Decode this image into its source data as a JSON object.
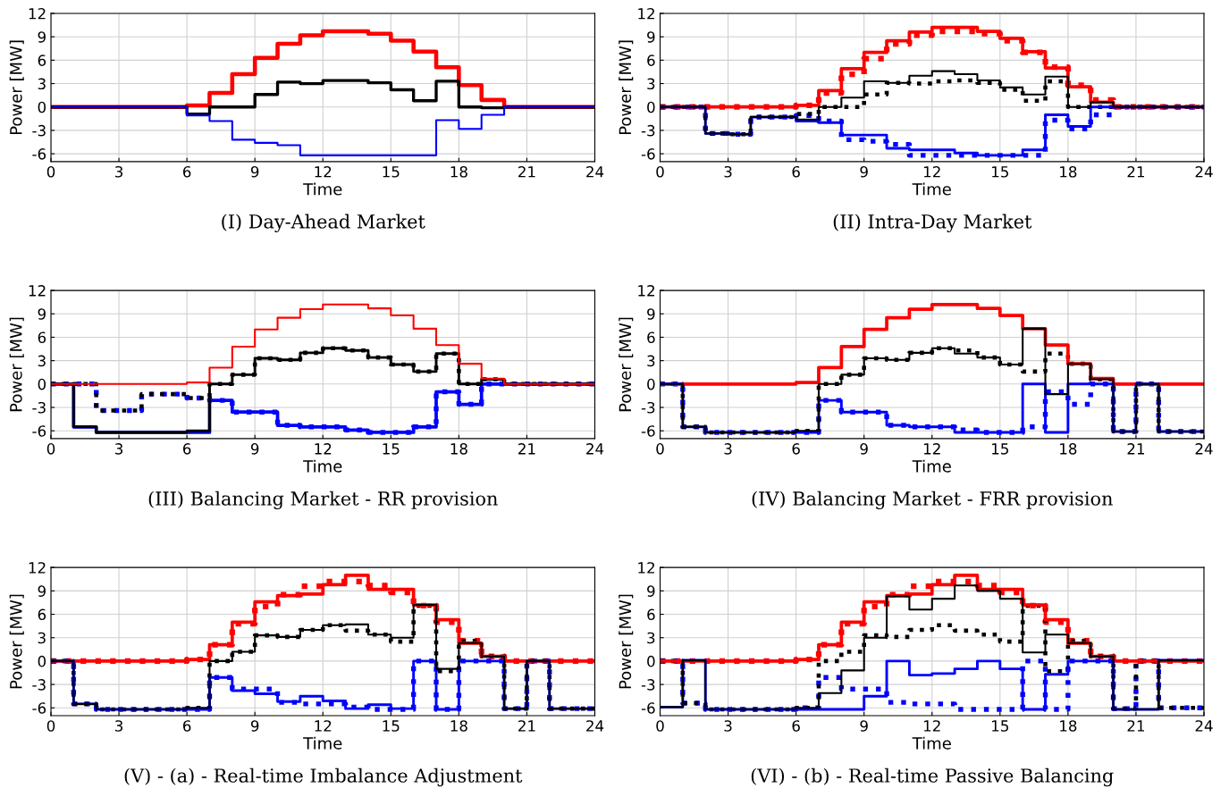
{
  "chart_data": [
    {
      "type": "step",
      "title": "(I) Day-Ahead Market",
      "xlabel": "Time",
      "ylabel": "Power [MW]",
      "x": [
        0,
        1,
        2,
        3,
        4,
        5,
        6,
        7,
        8,
        9,
        10,
        11,
        12,
        13,
        14,
        15,
        16,
        17,
        18,
        19,
        20,
        21,
        22,
        23,
        24
      ],
      "xlim": [
        0,
        24
      ],
      "ylim": [
        -7,
        12
      ],
      "xticks": [
        0,
        3,
        6,
        9,
        12,
        15,
        18,
        21,
        24
      ],
      "yticks": [
        -6,
        -3,
        0,
        3,
        6,
        9,
        12
      ],
      "grid": true,
      "series": [
        {
          "color": "#ff0000",
          "line_style": "solid",
          "values": [
            0,
            0,
            0,
            0,
            0,
            0,
            0.2,
            1.8,
            4.2,
            6.3,
            8.1,
            9.2,
            9.7,
            9.7,
            9.4,
            8.5,
            7.1,
            5.1,
            2.8,
            0.9,
            0,
            0,
            0,
            0,
            0
          ]
        },
        {
          "color": "#000000",
          "line_style": "solid",
          "values": [
            0,
            0,
            0,
            0,
            0,
            0,
            -0.9,
            0,
            0,
            1.6,
            3.2,
            3.0,
            3.4,
            3.4,
            3.1,
            2.2,
            0.8,
            3.3,
            0,
            -0.1,
            0,
            0,
            0,
            0,
            0
          ]
        },
        {
          "color": "#0000ff",
          "line_style": "solid",
          "values": [
            0,
            0,
            0,
            0,
            0,
            0,
            -1.1,
            -1.8,
            -4.2,
            -4.6,
            -4.9,
            -6.2,
            -6.2,
            -6.2,
            -6.2,
            -6.2,
            -6.2,
            -1.7,
            -2.8,
            -1.0,
            0,
            0,
            0,
            0,
            0
          ]
        }
      ]
    },
    {
      "type": "step",
      "title": "(II) Intra-Day Market",
      "xlabel": "Time",
      "ylabel": "Power [MW]",
      "x": [
        0,
        1,
        2,
        3,
        4,
        5,
        6,
        7,
        8,
        9,
        10,
        11,
        12,
        13,
        14,
        15,
        16,
        17,
        18,
        19,
        20,
        21,
        22,
        23,
        24
      ],
      "xlim": [
        0,
        24
      ],
      "ylim": [
        -7,
        12
      ],
      "xticks": [
        0,
        3,
        6,
        9,
        12,
        15,
        18,
        21,
        24
      ],
      "yticks": [
        -6,
        -3,
        0,
        3,
        6,
        9,
        12
      ],
      "grid": true,
      "series": [
        {
          "color": "#ff0000",
          "line_style": "dotted",
          "values": [
            0,
            0,
            0,
            0,
            0,
            0,
            0.2,
            1.8,
            4.2,
            6.2,
            8.1,
            9.2,
            9.7,
            9.7,
            9.4,
            8.5,
            7.0,
            5.1,
            2.8,
            0.9,
            0,
            0,
            0,
            0,
            0
          ]
        },
        {
          "color": "#0000ff",
          "line_style": "dotted",
          "values": [
            0,
            0,
            -3.4,
            -3.5,
            -1.3,
            -1.3,
            -1.1,
            -1.8,
            -4.2,
            -4.4,
            -4.8,
            -6.2,
            -6.2,
            -6.2,
            -6.2,
            -6.2,
            -6.2,
            -1.7,
            -2.8,
            -1.0,
            0,
            0,
            0,
            0,
            0
          ]
        },
        {
          "color": "#000000",
          "line_style": "dotted",
          "values": [
            0,
            0,
            -3.4,
            -3.5,
            -1.3,
            -1.3,
            -0.9,
            0,
            0,
            1.6,
            3.1,
            3.0,
            3.3,
            3.4,
            3.1,
            2.2,
            0.8,
            3.3,
            0,
            0,
            0,
            0,
            0,
            0,
            0
          ]
        },
        {
          "color": "#ff0000",
          "line_style": "solid",
          "values": [
            0,
            0,
            0,
            0,
            0,
            0,
            0.2,
            2.1,
            4.9,
            7.0,
            8.5,
            9.6,
            10.2,
            10.2,
            9.7,
            8.8,
            7.1,
            5.0,
            2.6,
            0.6,
            0,
            0,
            0,
            0,
            0
          ]
        },
        {
          "color": "#0000ff",
          "line_style": "solid",
          "values": [
            0,
            0,
            -3.4,
            -3.5,
            -1.3,
            -1.3,
            -1.8,
            -2.0,
            -3.6,
            -3.6,
            -5.3,
            -5.5,
            -5.5,
            -5.9,
            -6.2,
            -6.2,
            -5.5,
            -1.0,
            -2.5,
            0,
            0,
            0,
            0,
            0,
            0
          ]
        },
        {
          "color": "#000000",
          "line_style": "solid",
          "values": [
            0,
            0,
            -3.4,
            -3.5,
            -1.3,
            -1.3,
            -1.6,
            0,
            1.2,
            3.3,
            3.1,
            4.0,
            4.6,
            4.2,
            3.4,
            2.5,
            1.6,
            3.9,
            0,
            0.6,
            0,
            0,
            0,
            0,
            0
          ]
        }
      ]
    },
    {
      "type": "step",
      "title": "(III) Balancing Market - RR provision",
      "xlabel": "Time",
      "ylabel": "Power [MW]",
      "x": [
        0,
        1,
        2,
        3,
        4,
        5,
        6,
        7,
        8,
        9,
        10,
        11,
        12,
        13,
        14,
        15,
        16,
        17,
        18,
        19,
        20,
        21,
        22,
        23,
        24
      ],
      "xlim": [
        0,
        24
      ],
      "ylim": [
        -7,
        12
      ],
      "xticks": [
        0,
        3,
        6,
        9,
        12,
        15,
        18,
        21,
        24
      ],
      "yticks": [
        -6,
        -3,
        0,
        3,
        6,
        9,
        12
      ],
      "grid": true,
      "series": [
        {
          "color": "#0000ff",
          "line_style": "dotted",
          "values": [
            0,
            0,
            -3.4,
            -3.4,
            -1.3,
            -1.3,
            -1.8,
            -2.1,
            -3.6,
            -3.6,
            -5.3,
            -5.5,
            -5.5,
            -5.9,
            -6.2,
            -6.2,
            -5.5,
            -1.0,
            -2.6,
            0,
            0,
            0,
            0,
            0,
            0
          ]
        },
        {
          "color": "#000000",
          "line_style": "dotted",
          "values": [
            0,
            0,
            -3.4,
            -3.4,
            -1.3,
            -1.3,
            -1.8,
            0,
            1.2,
            3.3,
            3.1,
            4.0,
            4.6,
            4.3,
            3.4,
            2.5,
            1.6,
            3.9,
            0,
            0.6,
            0,
            0,
            0,
            0,
            0
          ]
        },
        {
          "color": "#0000ff",
          "line_style": "solid",
          "values": [
            0,
            -5.5,
            -6.2,
            -6.2,
            -6.2,
            -6.2,
            -6.2,
            -2.1,
            -3.6,
            -3.6,
            -5.3,
            -5.5,
            -5.5,
            -5.9,
            -6.2,
            -6.2,
            -5.5,
            -1.0,
            -2.6,
            0,
            0,
            0,
            0,
            0,
            0
          ]
        },
        {
          "color": "#000000",
          "line_style": "solid",
          "values": [
            0,
            -5.5,
            -6.2,
            -6.2,
            -6.2,
            -6.2,
            -6.0,
            0,
            1.2,
            3.3,
            3.1,
            4.0,
            4.6,
            4.3,
            3.4,
            2.5,
            1.6,
            3.9,
            0,
            0.6,
            0,
            0,
            0,
            0,
            0
          ]
        },
        {
          "color": "#ff0000",
          "line_style": "solid",
          "values": [
            0,
            0,
            0,
            0,
            0,
            0,
            0.2,
            2.1,
            4.8,
            7.0,
            8.5,
            9.6,
            10.2,
            10.2,
            9.7,
            8.8,
            7.1,
            5.0,
            2.6,
            0.7,
            0,
            0,
            0,
            0,
            0
          ]
        }
      ]
    },
    {
      "type": "step",
      "title": "(IV) Balancing Market - FRR provision",
      "xlabel": "Time",
      "ylabel": "Power [MW]",
      "x": [
        0,
        1,
        2,
        3,
        4,
        5,
        6,
        7,
        8,
        9,
        10,
        11,
        12,
        13,
        14,
        15,
        16,
        17,
        18,
        19,
        20,
        21,
        22,
        23,
        24
      ],
      "xlim": [
        0,
        24
      ],
      "ylim": [
        -7,
        12
      ],
      "xticks": [
        0,
        3,
        6,
        9,
        12,
        15,
        18,
        21,
        24
      ],
      "yticks": [
        -6,
        -3,
        0,
        3,
        6,
        9,
        12
      ],
      "grid": true,
      "series": [
        {
          "color": "#0000ff",
          "line_style": "dotted",
          "values": [
            0,
            -5.5,
            -6.2,
            -6.2,
            -6.2,
            -6.2,
            -6.2,
            -2.1,
            -3.6,
            -3.6,
            -5.3,
            -5.5,
            -5.5,
            -5.9,
            -6.2,
            -6.2,
            -5.5,
            -1.0,
            -2.6,
            0,
            -6.1,
            0,
            -6.1,
            -6.1,
            -6.1
          ]
        },
        {
          "color": "#000000",
          "line_style": "dotted",
          "values": [
            0,
            -5.5,
            -6.2,
            -6.2,
            -6.2,
            -6.2,
            -6.0,
            0,
            1.2,
            3.3,
            3.1,
            4.0,
            4.6,
            4.3,
            3.4,
            2.5,
            1.6,
            3.9,
            2.6,
            0.6,
            -6.1,
            0,
            -6.1,
            -6.1,
            -6.1
          ]
        },
        {
          "color": "#ff0000",
          "line_style": "solid",
          "values": [
            0,
            0,
            0,
            0,
            0,
            0,
            0.2,
            2.1,
            4.8,
            7.0,
            8.5,
            9.6,
            10.2,
            10.2,
            9.7,
            8.8,
            7.1,
            5.0,
            2.6,
            0.7,
            0,
            0,
            0,
            0,
            0
          ]
        },
        {
          "color": "#0000ff",
          "line_style": "solid",
          "values": [
            0,
            -5.5,
            -6.2,
            -6.2,
            -6.2,
            -6.2,
            -6.2,
            -2.1,
            -3.6,
            -3.6,
            -5.3,
            -5.5,
            -5.5,
            -6.2,
            -6.2,
            -6.2,
            0,
            -6.2,
            0,
            0,
            -6.1,
            0,
            -6.1,
            -6.1,
            -6.1
          ]
        },
        {
          "color": "#000000",
          "line_style": "solid",
          "values": [
            0,
            -5.5,
            -6.2,
            -6.2,
            -6.2,
            -6.2,
            -6.0,
            0,
            1.2,
            3.3,
            3.1,
            4.0,
            4.6,
            3.9,
            3.4,
            2.5,
            7.1,
            -1.3,
            2.6,
            0.6,
            -6.1,
            0,
            -6.1,
            -6.1,
            -6.1
          ]
        }
      ]
    },
    {
      "type": "step",
      "title": "(V) - (a) - Real-time Imbalance Adjustment",
      "xlabel": "Time",
      "ylabel": "Power [MW]",
      "x": [
        0,
        1,
        2,
        3,
        4,
        5,
        6,
        7,
        8,
        9,
        10,
        11,
        12,
        13,
        14,
        15,
        16,
        17,
        18,
        19,
        20,
        21,
        22,
        23,
        24
      ],
      "xlim": [
        0,
        24
      ],
      "ylim": [
        -7,
        12
      ],
      "xticks": [
        0,
        3,
        6,
        9,
        12,
        15,
        18,
        21,
        24
      ],
      "yticks": [
        -6,
        -3,
        0,
        3,
        6,
        9,
        12
      ],
      "grid": true,
      "series": [
        {
          "color": "#ff0000",
          "line_style": "dotted",
          "values": [
            0,
            0,
            0,
            0,
            0,
            0,
            0.2,
            2.1,
            4.8,
            7.0,
            8.5,
            9.6,
            10.2,
            10.2,
            9.7,
            8.8,
            7.1,
            5.0,
            2.6,
            0.6,
            0,
            0,
            0,
            0,
            0
          ]
        },
        {
          "color": "#0000ff",
          "line_style": "dotted",
          "values": [
            0,
            -5.5,
            -6.2,
            -6.2,
            -6.2,
            -6.2,
            -6.2,
            -2.1,
            -3.6,
            -3.6,
            -5.3,
            -5.5,
            -5.5,
            -5.9,
            -6.2,
            -6.2,
            0,
            -6.2,
            0,
            0,
            -6.1,
            0,
            -6.1,
            -6.1,
            -6.1
          ]
        },
        {
          "color": "#000000",
          "line_style": "dotted",
          "values": [
            0,
            -5.5,
            -6.2,
            -6.2,
            -6.2,
            -6.2,
            -6.0,
            0,
            1.2,
            3.3,
            3.1,
            4.0,
            4.6,
            3.9,
            3.4,
            2.5,
            7.1,
            -1.3,
            2.6,
            0.6,
            -6.1,
            0,
            -6.1,
            -6.1,
            -6.1
          ]
        },
        {
          "color": "#ff0000",
          "line_style": "solid",
          "values": [
            0,
            0,
            0,
            0,
            0,
            0,
            0.2,
            2.1,
            5.0,
            7.6,
            8.4,
            8.6,
            9.8,
            11.0,
            9.2,
            9.2,
            7.2,
            5.3,
            2.3,
            0.6,
            0,
            0,
            0,
            0,
            0
          ]
        },
        {
          "color": "#0000ff",
          "line_style": "solid",
          "values": [
            0,
            -5.5,
            -6.2,
            -6.2,
            -6.2,
            -6.2,
            -6.2,
            -2.1,
            -3.8,
            -4.2,
            -5.2,
            -4.5,
            -5.1,
            -6.1,
            -5.6,
            -6.1,
            0,
            -6.2,
            0,
            0,
            -6.1,
            0,
            -6.1,
            -6.1,
            -6.1
          ]
        },
        {
          "color": "#000000",
          "line_style": "solid",
          "values": [
            0,
            -5.5,
            -6.2,
            -6.2,
            -6.2,
            -6.2,
            -6.0,
            0,
            1.2,
            3.3,
            3.1,
            4.0,
            4.6,
            4.7,
            3.4,
            3.0,
            7.2,
            -1.0,
            2.3,
            0.6,
            -6.1,
            0,
            -6.1,
            -6.1,
            -6.1
          ]
        }
      ]
    },
    {
      "type": "step",
      "title": "(VI) - (b) - Real-time Passive Balancing",
      "xlabel": "Time",
      "ylabel": "Power [MW]",
      "x": [
        0,
        1,
        2,
        3,
        4,
        5,
        6,
        7,
        8,
        9,
        10,
        11,
        12,
        13,
        14,
        15,
        16,
        17,
        18,
        19,
        20,
        21,
        22,
        23,
        24
      ],
      "xlim": [
        0,
        24
      ],
      "ylim": [
        -7,
        12
      ],
      "xticks": [
        0,
        3,
        6,
        9,
        12,
        15,
        18,
        21,
        24
      ],
      "yticks": [
        -6,
        -3,
        0,
        3,
        6,
        9,
        12
      ],
      "grid": true,
      "series": [
        {
          "color": "#ff0000",
          "line_style": "dotted",
          "values": [
            0,
            0,
            0,
            0,
            0,
            0,
            0.2,
            2.1,
            4.8,
            7.0,
            8.5,
            9.6,
            10.2,
            10.2,
            9.7,
            8.8,
            7.1,
            5.0,
            2.6,
            0.6,
            0,
            0,
            0,
            0,
            0
          ]
        },
        {
          "color": "#0000ff",
          "line_style": "dotted",
          "values": [
            0,
            -5.4,
            -6.2,
            -6.2,
            -6.2,
            -6.2,
            -6.0,
            -2.1,
            -3.6,
            -3.6,
            -5.3,
            -5.5,
            -5.5,
            -6.2,
            -6.2,
            -6.2,
            0,
            -6.2,
            0,
            0,
            -6.1,
            0,
            -6.0,
            -6.0,
            -6.0
          ]
        },
        {
          "color": "#000000",
          "line_style": "dotted",
          "values": [
            0,
            -5.4,
            -6.2,
            -6.2,
            -6.2,
            -6.2,
            -6.0,
            0,
            1.2,
            3.3,
            3.1,
            4.0,
            4.6,
            3.9,
            3.4,
            2.5,
            7.1,
            -1.3,
            2.6,
            0.6,
            -6.1,
            0,
            -6.0,
            -6.0,
            -6.0
          ]
        },
        {
          "color": "#ff0000",
          "line_style": "solid",
          "values": [
            0,
            0,
            0,
            0,
            0,
            0,
            0.2,
            2.1,
            5.0,
            7.6,
            8.4,
            8.6,
            9.8,
            11.0,
            9.2,
            9.2,
            7.2,
            5.3,
            2.3,
            0.6,
            0,
            0,
            0,
            0,
            0
          ]
        },
        {
          "color": "#0000ff",
          "line_style": "solid",
          "values": [
            -5.9,
            0.1,
            -6.2,
            -6.2,
            -6.2,
            -6.2,
            -6.2,
            -6.2,
            -6.2,
            -4.5,
            0,
            -1.8,
            -1.6,
            -1.0,
            0,
            -1.0,
            -6.2,
            -1.7,
            0,
            0,
            -6.2,
            -6.2,
            0.1,
            0.1,
            0.1
          ]
        },
        {
          "color": "#000000",
          "line_style": "solid",
          "values": [
            -5.9,
            0.1,
            -6.2,
            -6.2,
            -6.2,
            -6.2,
            -6.0,
            -4.1,
            -1.2,
            3.0,
            8.3,
            6.6,
            8.0,
            9.7,
            9.0,
            8.0,
            1.1,
            3.4,
            2.3,
            0.6,
            -6.2,
            -6.2,
            0.1,
            0.1,
            0.1
          ]
        }
      ]
    }
  ]
}
